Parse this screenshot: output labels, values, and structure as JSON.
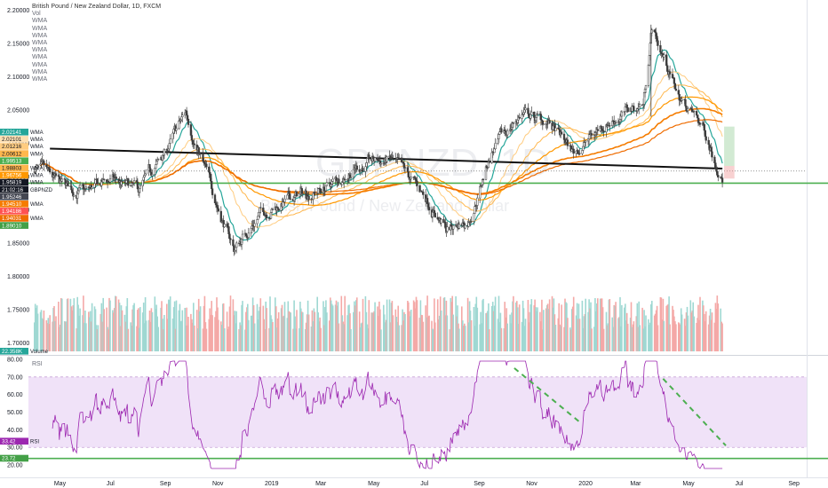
{
  "header": {
    "title": "British Pound / New Zealand Dollar, 1D, FXCM",
    "vol_label": "Vol",
    "wma_labels": [
      "WMA",
      "WMA",
      "WMA",
      "WMA",
      "WMA",
      "WMA",
      "WMA",
      "WMA",
      "WMA"
    ]
  },
  "watermark": {
    "symbol": "GBPNZD, 1D",
    "name": "British Pound / New Zealand Dollar"
  },
  "colors": {
    "up_candle": "#3c3c3c",
    "down_candle": "#3c3c3c",
    "teal": "#26a69a",
    "orange": "#f57c00",
    "light_orange": "#ffcc80",
    "green_line": "#4caf50",
    "rsi_line": "#9c27b0",
    "rsi_band": "#e9d5f5",
    "vol_up": "#9fd8d3",
    "vol_down": "#f4a9a7"
  },
  "chart_data": {
    "type": "line",
    "title": "British Pound / New Zealand Dollar, 1D, FXCM",
    "symbol": "GBPNZD",
    "timeframe": "1D",
    "x_ticks": [
      "May",
      "Jul",
      "Sep",
      "Nov",
      "2019",
      "Mar",
      "May",
      "Jul",
      "Sep",
      "Nov",
      "2020",
      "Mar",
      "May",
      "Jul",
      "Sep"
    ],
    "price_axis": {
      "ticks": [
        "2.20000",
        "2.15000",
        "2.10000",
        "2.05000",
        "2.00000",
        "1.95000",
        "1.90000",
        "1.85000",
        "1.80000",
        "1.75000",
        "1.70000"
      ],
      "ylim": [
        1.685,
        2.215
      ]
    },
    "price_labels": [
      {
        "value": "2.02141",
        "tag": "WMA",
        "color": "#26a69a"
      },
      {
        "value": "2.02101",
        "tag": "WMA",
        "color": "#ffe0b2"
      },
      {
        "value": "2.01216",
        "tag": "WMA",
        "color": "#ffcc80"
      },
      {
        "value": "2.00612",
        "tag": "WMA",
        "color": "#ffb74d"
      },
      {
        "value": "1.99513",
        "tag": "",
        "color": "#4caf50"
      },
      {
        "value": "1.98803",
        "tag": "WMA",
        "color": "#ffb74d"
      },
      {
        "value": "1.96756",
        "tag": "WMA",
        "color": "#ff9800"
      },
      {
        "value": "1.95819",
        "tag": "WMA",
        "color": "#131722"
      },
      {
        "value": "21:02:16",
        "tag": "GBPNZD",
        "color": "#131722"
      },
      {
        "value": "1.95246",
        "tag": "",
        "color": "#434651"
      },
      {
        "value": "1.94510",
        "tag": "WMA",
        "color": "#f57c00"
      },
      {
        "value": "1.94186",
        "tag": "",
        "color": "#ff5252"
      },
      {
        "value": "1.94031",
        "tag": "WMA",
        "color": "#ef6c00"
      },
      {
        "value": "1.89010",
        "tag": "",
        "color": "#43a047"
      }
    ],
    "volume_label": {
      "value": "22.358K",
      "tag": "Volume"
    },
    "rsi": {
      "label": "RSI",
      "current": "33.42",
      "extra": "23.72",
      "ticks": [
        "80.00",
        "70.00",
        "60.00",
        "50.00",
        "40.00",
        "30.00",
        "20.00"
      ],
      "ylim": [
        16,
        81
      ],
      "band": [
        30,
        70
      ],
      "support_level": 23.72
    },
    "horizontal_levels": [
      {
        "name": "support",
        "value": 1.9401,
        "color": "#4caf50"
      }
    ],
    "trendline": {
      "from": {
        "x": "2018-04-20",
        "y": 1.992
      },
      "to": {
        "x": "2020-06-10",
        "y": 1.962
      }
    },
    "last_price": 1.95246,
    "key_points": [
      {
        "x": "2018-04-01",
        "y": 1.965
      },
      {
        "x": "2018-05-01",
        "y": 1.935
      },
      {
        "x": "2018-06-01",
        "y": 1.925
      },
      {
        "x": "2018-07-01",
        "y": 1.945
      },
      {
        "x": "2018-08-01",
        "y": 1.925
      },
      {
        "x": "2018-09-01",
        "y": 1.985
      },
      {
        "x": "2018-09-25",
        "y": 2.045
      },
      {
        "x": "2018-10-20",
        "y": 1.95
      },
      {
        "x": "2018-11-20",
        "y": 1.84
      },
      {
        "x": "2018-12-20",
        "y": 1.895
      },
      {
        "x": "2019-02-01",
        "y": 1.92
      },
      {
        "x": "2019-03-10",
        "y": 1.935
      },
      {
        "x": "2019-04-10",
        "y": 1.965
      },
      {
        "x": "2019-05-20",
        "y": 1.975
      },
      {
        "x": "2019-07-01",
        "y": 1.92
      },
      {
        "x": "2019-07-25",
        "y": 1.87
      },
      {
        "x": "2019-08-20",
        "y": 1.885
      },
      {
        "x": "2019-09-15",
        "y": 1.985
      },
      {
        "x": "2019-10-20",
        "y": 2.045
      },
      {
        "x": "2019-11-20",
        "y": 2.03
      },
      {
        "x": "2019-12-20",
        "y": 1.985
      },
      {
        "x": "2020-01-25",
        "y": 2.03
      },
      {
        "x": "2020-03-10",
        "y": 2.06
      },
      {
        "x": "2020-03-20",
        "y": 2.175
      },
      {
        "x": "2020-04-20",
        "y": 2.07
      },
      {
        "x": "2020-05-20",
        "y": 2.02
      },
      {
        "x": "2020-06-10",
        "y": 1.952
      }
    ]
  }
}
